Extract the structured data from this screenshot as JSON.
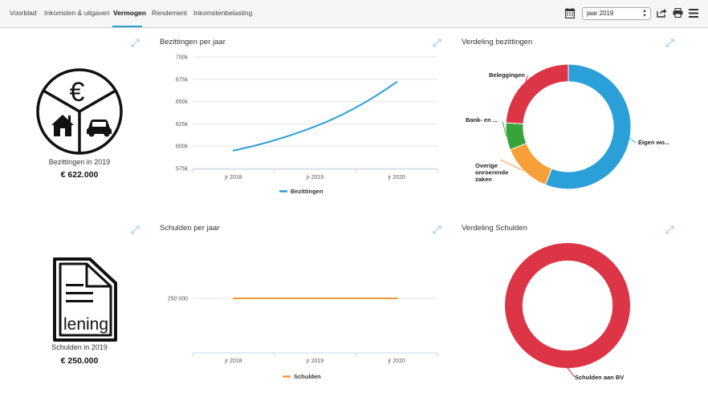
{
  "nav": {
    "tabs": [
      {
        "label": "Voorblad"
      },
      {
        "label": "Inkomsten & uitgaven"
      },
      {
        "label": "Vermogen"
      },
      {
        "label": "Rendement"
      },
      {
        "label": "Inkomstenbelasting"
      }
    ],
    "active_tab": "Vermogen",
    "year_select": {
      "value": "jaar 2019",
      "options": [
        "jaar 2019"
      ]
    }
  },
  "assets": {
    "summary": {
      "caption": "Bezittingen in 2019",
      "amount": "€ 622.000",
      "icon_text": "€"
    },
    "line_title": "Bezittingen per jaar",
    "donut_title": "Verdeling bezittingen"
  },
  "debts": {
    "summary": {
      "caption": "Schulden in 2019",
      "amount": "€ 250.000",
      "icon_text": "lening"
    },
    "line_title": "Schulden per jaar",
    "donut_title": "Verdeling Schulden"
  },
  "colors": {
    "accent": "#2a9fd8",
    "blue": "#2a9fd8",
    "red": "#dc3545",
    "green": "#37a33a",
    "orange": "#f7a03a",
    "debt_line": "#f09a36"
  },
  "chart_data": [
    {
      "type": "line",
      "title": "Bezittingen per jaar",
      "categories": [
        "jr 2018",
        "jr 2019",
        "jr 2020"
      ],
      "ytick_labels": [
        "575k",
        "600k",
        "625k",
        "650k",
        "675k",
        "700k"
      ],
      "yticks": [
        575000,
        600000,
        625000,
        650000,
        675000,
        700000
      ],
      "ylim": [
        575000,
        700000
      ],
      "series": [
        {
          "name": "Bezittingen",
          "values": [
            595000,
            622000,
            672000
          ],
          "color": "#2a9fd8"
        }
      ],
      "legend": "bottom",
      "grid": true
    },
    {
      "type": "line",
      "title": "Schulden per jaar",
      "categories": [
        "jr 2018",
        "jr 2019",
        "jr 2020"
      ],
      "ytick_labels": [
        "250 000"
      ],
      "yticks": [
        250000
      ],
      "series": [
        {
          "name": "Schulden",
          "values": [
            250000,
            250000,
            250000
          ],
          "color": "#f09a36"
        }
      ],
      "legend": "bottom",
      "grid": true
    },
    {
      "type": "pie",
      "title": "Verdeling bezittingen",
      "slices": [
        {
          "label": "Eigen wo...",
          "value": 56,
          "color": "#2a9fd8"
        },
        {
          "label": "Overige onroerende zaken",
          "value": 13,
          "color": "#f7a03a"
        },
        {
          "label": "Bank- en ...",
          "value": 7,
          "color": "#37a33a"
        },
        {
          "label": "Beleggingen",
          "value": 24,
          "color": "#dc3545"
        }
      ]
    },
    {
      "type": "pie",
      "title": "Verdeling Schulden",
      "slices": [
        {
          "label": "Schulden aan BV",
          "value": 100,
          "color": "#dc3545"
        }
      ]
    }
  ]
}
